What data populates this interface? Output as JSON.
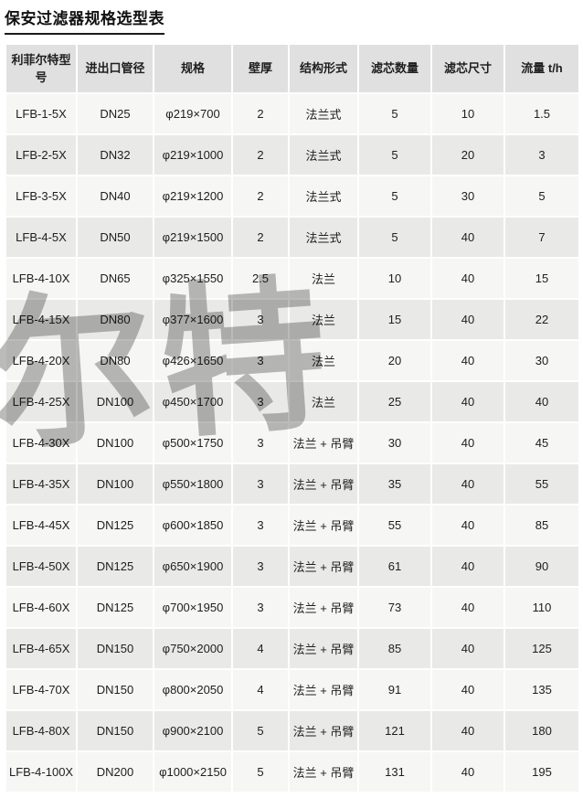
{
  "title": "保安过滤器规格选型表",
  "watermark_text": "尔特",
  "colors": {
    "header_bg": "#e0e0e0",
    "row_odd_bg": "#f6f6f5",
    "row_even_bg": "#e9e9e8",
    "text": "#202020",
    "gap": "#ffffff",
    "watermark": "#b4b4b4",
    "title": "#111111"
  },
  "table": {
    "columns": [
      "利菲尔特型号",
      "进出口管径",
      "规格",
      "壁厚",
      "结构形式",
      "滤芯数量",
      "滤芯尺寸",
      "流量 t/h"
    ],
    "rows": [
      [
        "LFB-1-5X",
        "DN25",
        "φ219×700",
        "2",
        "法兰式",
        "5",
        "10",
        "1.5"
      ],
      [
        "LFB-2-5X",
        "DN32",
        "φ219×1000",
        "2",
        "法兰式",
        "5",
        "20",
        "3"
      ],
      [
        "LFB-3-5X",
        "DN40",
        "φ219×1200",
        "2",
        "法兰式",
        "5",
        "30",
        "5"
      ],
      [
        "LFB-4-5X",
        "DN50",
        "φ219×1500",
        "2",
        "法兰式",
        "5",
        "40",
        "7"
      ],
      [
        "LFB-4-10X",
        "DN65",
        "φ325×1550",
        "2.5",
        "法兰",
        "10",
        "40",
        "15"
      ],
      [
        "LFB-4-15X",
        "DN80",
        "φ377×1600",
        "3",
        "法兰",
        "15",
        "40",
        "22"
      ],
      [
        "LFB-4-20X",
        "DN80",
        "φ426×1650",
        "3",
        "法兰",
        "20",
        "40",
        "30"
      ],
      [
        "LFB-4-25X",
        "DN100",
        "φ450×1700",
        "3",
        "法兰",
        "25",
        "40",
        "40"
      ],
      [
        "LFB-4-30X",
        "DN100",
        "φ500×1750",
        "3",
        "法兰 + 吊臂",
        "30",
        "40",
        "45"
      ],
      [
        "LFB-4-35X",
        "DN100",
        "φ550×1800",
        "3",
        "法兰 + 吊臂",
        "35",
        "40",
        "55"
      ],
      [
        "LFB-4-45X",
        "DN125",
        "φ600×1850",
        "3",
        "法兰 + 吊臂",
        "55",
        "40",
        "85"
      ],
      [
        "LFB-4-50X",
        "DN125",
        "φ650×1900",
        "3",
        "法兰 + 吊臂",
        "61",
        "40",
        "90"
      ],
      [
        "LFB-4-60X",
        "DN125",
        "φ700×1950",
        "3",
        "法兰 + 吊臂",
        "73",
        "40",
        "110"
      ],
      [
        "LFB-4-65X",
        "DN150",
        "φ750×2000",
        "4",
        "法兰 + 吊臂",
        "85",
        "40",
        "125"
      ],
      [
        "LFB-4-70X",
        "DN150",
        "φ800×2050",
        "4",
        "法兰 + 吊臂",
        "91",
        "40",
        "135"
      ],
      [
        "LFB-4-80X",
        "DN150",
        "φ900×2100",
        "5",
        "法兰 + 吊臂",
        "121",
        "40",
        "180"
      ],
      [
        "LFB-4-100X",
        "DN200",
        "φ1000×2150",
        "5",
        "法兰 + 吊臂",
        "131",
        "40",
        "195"
      ]
    ]
  }
}
